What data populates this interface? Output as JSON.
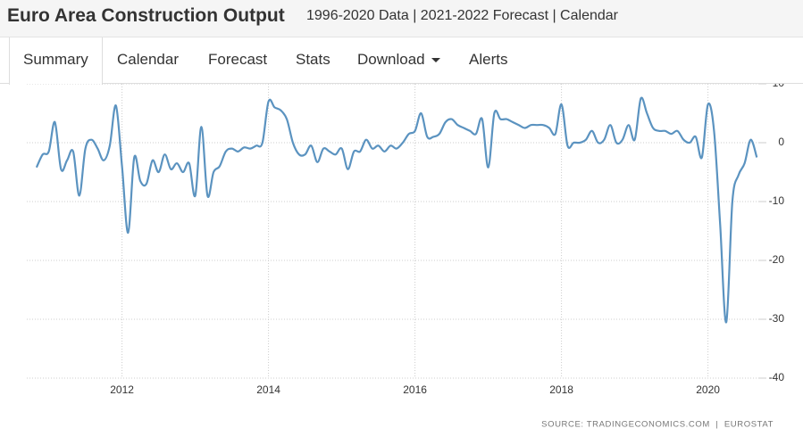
{
  "header": {
    "title": "Euro Area Construction Output",
    "subtitle": "1996-2020 Data | 2021-2022 Forecast | Calendar"
  },
  "tabs": [
    "Summary",
    "Calendar",
    "Forecast",
    "Stats",
    "Download",
    "Alerts"
  ],
  "active_tab": 0,
  "source": "SOURCE: TRADINGECONOMICS.COM  |  EUROSTAT",
  "chart_data": {
    "type": "line",
    "x": [
      "2010-11",
      "2010-12",
      "2011-01",
      "2011-02",
      "2011-03",
      "2011-04",
      "2011-05",
      "2011-06",
      "2011-07",
      "2011-08",
      "2011-09",
      "2011-10",
      "2011-11",
      "2011-12",
      "2012-01",
      "2012-02",
      "2012-03",
      "2012-04",
      "2012-05",
      "2012-06",
      "2012-07",
      "2012-08",
      "2012-09",
      "2012-10",
      "2012-11",
      "2012-12",
      "2013-01",
      "2013-02",
      "2013-03",
      "2013-04",
      "2013-05",
      "2013-06",
      "2013-07",
      "2013-08",
      "2013-09",
      "2013-10",
      "2013-11",
      "2013-12",
      "2014-01",
      "2014-02",
      "2014-03",
      "2014-04",
      "2014-05",
      "2014-06",
      "2014-07",
      "2014-08",
      "2014-09",
      "2014-10",
      "2014-11",
      "2014-12",
      "2015-01",
      "2015-02",
      "2015-03",
      "2015-04",
      "2015-05",
      "2015-06",
      "2015-07",
      "2015-08",
      "2015-09",
      "2015-10",
      "2015-11",
      "2015-12",
      "2016-01",
      "2016-02",
      "2016-03",
      "2016-04",
      "2016-05",
      "2016-06",
      "2016-07",
      "2016-08",
      "2016-09",
      "2016-10",
      "2016-11",
      "2016-12",
      "2017-01",
      "2017-02",
      "2017-03",
      "2017-04",
      "2017-05",
      "2017-06",
      "2017-07",
      "2017-08",
      "2017-09",
      "2017-10",
      "2017-11",
      "2017-12",
      "2018-01",
      "2018-02",
      "2018-03",
      "2018-04",
      "2018-05",
      "2018-06",
      "2018-07",
      "2018-08",
      "2018-09",
      "2018-10",
      "2018-11",
      "2018-12",
      "2019-01",
      "2019-02",
      "2019-03",
      "2019-04",
      "2019-05",
      "2019-06",
      "2019-07",
      "2019-08",
      "2019-09",
      "2019-10",
      "2019-11",
      "2019-12",
      "2020-01",
      "2020-02",
      "2020-03",
      "2020-04",
      "2020-05",
      "2020-06",
      "2020-07",
      "2020-08",
      "2020-09"
    ],
    "series": [
      {
        "name": "Construction Output",
        "color": "#5b93c0",
        "values": [
          -4.2,
          -2,
          -1.5,
          3.5,
          -4.5,
          -3,
          -1.5,
          -9,
          -1,
          0.5,
          -1,
          -3,
          -0.5,
          6.3,
          -4,
          -15.3,
          -2.5,
          -6.5,
          -7,
          -3,
          -5,
          -2,
          -4.5,
          -3.5,
          -5,
          -3.5,
          -9,
          2.7,
          -9,
          -5,
          -4,
          -1.5,
          -1,
          -1.5,
          -0.8,
          -1,
          -0.5,
          0,
          7,
          6,
          5.5,
          4,
          0,
          -2,
          -2,
          -0.5,
          -3.3,
          -1,
          -1.5,
          -2,
          -1,
          -4.5,
          -1.5,
          -1.5,
          0.5,
          -1,
          -0.5,
          -1.5,
          -0.5,
          -1,
          0,
          1.5,
          2,
          5,
          1,
          1,
          1.5,
          3.5,
          4,
          3,
          2.5,
          2,
          1.5,
          4,
          -4.2,
          5,
          4,
          4,
          3.5,
          3,
          2.5,
          3,
          3,
          3,
          2.5,
          1.5,
          6.5,
          -0.5,
          0,
          0,
          0.5,
          2,
          0,
          0.5,
          3,
          0,
          0.5,
          3,
          0.5,
          7.5,
          5,
          2.5,
          2,
          2,
          1.5,
          2,
          0.5,
          0,
          1,
          -2.5,
          6.5,
          2,
          -14,
          -30.5,
          -10,
          -5.5,
          -3.5,
          0.5,
          -2.5
        ]
      }
    ],
    "xlim": [
      2010.7,
      2020.7
    ],
    "xticks": [
      2012,
      2014,
      2016,
      2018,
      2020
    ],
    "ylim": [
      -40,
      10
    ],
    "yticks": [
      10,
      0,
      -10,
      -20,
      -30,
      -40
    ],
    "grid": true
  }
}
